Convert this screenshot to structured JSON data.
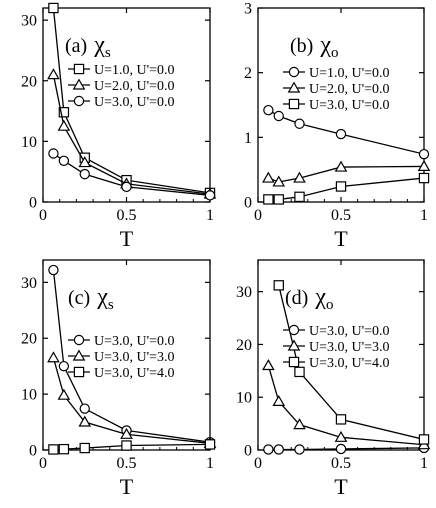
{
  "chart_data": [
    {
      "type": "line",
      "panel_label": "(a)",
      "title_symbol": "χ",
      "title_subscript": "s",
      "xlabel": "T",
      "ylabel": "",
      "xlim": [
        0,
        1
      ],
      "ylim": [
        0,
        32
      ],
      "xticks": [
        0,
        0.5,
        1
      ],
      "xtick_labels": [
        "0",
        "0.5",
        "1"
      ],
      "yticks": [
        0,
        10,
        20,
        30
      ],
      "ytick_labels": [
        "0",
        "10",
        "20",
        "30"
      ],
      "legend_position": "top-right",
      "series": [
        {
          "name": "U=1.0, U'=0.0",
          "marker": "square",
          "x": [
            0.0625,
            0.125,
            0.25,
            0.5,
            1.0
          ],
          "y": [
            32.0,
            14.8,
            7.3,
            3.6,
            1.5
          ]
        },
        {
          "name": "U=2.0, U'=0.0",
          "marker": "triangle",
          "x": [
            0.0625,
            0.125,
            0.25,
            0.5,
            1.0
          ],
          "y": [
            21.0,
            12.5,
            6.5,
            3.0,
            1.3
          ]
        },
        {
          "name": "U=3.0, U'=0.0",
          "marker": "circle",
          "x": [
            0.0625,
            0.125,
            0.25,
            0.5,
            1.0
          ],
          "y": [
            8.0,
            6.8,
            4.6,
            2.5,
            1.1
          ]
        }
      ]
    },
    {
      "type": "line",
      "panel_label": "(b)",
      "title_symbol": "χ",
      "title_subscript": "o",
      "xlabel": "T",
      "ylabel": "",
      "xlim": [
        0,
        1
      ],
      "ylim": [
        0,
        3
      ],
      "xticks": [
        0,
        0.5,
        1
      ],
      "xtick_labels": [
        "0",
        "0.5",
        "1"
      ],
      "yticks": [
        0,
        1,
        2,
        3
      ],
      "ytick_labels": [
        "0",
        "1",
        "2",
        "3"
      ],
      "legend_position": "top-right",
      "series": [
        {
          "name": "U=1.0, U'=0.0",
          "marker": "circle",
          "x": [
            0.0625,
            0.125,
            0.25,
            0.5,
            1.0
          ],
          "y": [
            1.42,
            1.33,
            1.21,
            1.05,
            0.74
          ]
        },
        {
          "name": "U=2.0, U'=0.0",
          "marker": "triangle",
          "x": [
            0.0625,
            0.125,
            0.25,
            0.5,
            1.0
          ],
          "y": [
            0.37,
            0.31,
            0.37,
            0.54,
            0.55
          ]
        },
        {
          "name": "U=3.0, U'=0.0",
          "marker": "square",
          "x": [
            0.0625,
            0.125,
            0.25,
            0.5,
            1.0
          ],
          "y": [
            0.04,
            0.04,
            0.08,
            0.24,
            0.37
          ]
        }
      ]
    },
    {
      "type": "line",
      "panel_label": "(c)",
      "title_symbol": "χ",
      "title_subscript": "s",
      "xlabel": "T",
      "ylabel": "",
      "xlim": [
        0,
        1
      ],
      "ylim": [
        0,
        34
      ],
      "xticks": [
        0,
        0.5,
        1
      ],
      "xtick_labels": [
        "0",
        "0.5",
        "1"
      ],
      "yticks": [
        0,
        10,
        20,
        30
      ],
      "ytick_labels": [
        "0",
        "10",
        "20",
        "30"
      ],
      "legend_position": "center-right",
      "series": [
        {
          "name": "U=3.0, U'=0.0",
          "marker": "circle",
          "x": [
            0.0625,
            0.125,
            0.25,
            0.5,
            1.0
          ],
          "y": [
            32.2,
            15.0,
            7.4,
            3.5,
            1.4
          ]
        },
        {
          "name": "U=3.0, U'=3.0",
          "marker": "triangle",
          "x": [
            0.0625,
            0.125,
            0.25,
            0.5,
            1.0
          ],
          "y": [
            16.5,
            9.8,
            5.0,
            2.8,
            1.2
          ]
        },
        {
          "name": "U=3.0, U'=4.0",
          "marker": "square",
          "x": [
            0.0625,
            0.125,
            0.25,
            0.5,
            1.0
          ],
          "y": [
            0.1,
            0.15,
            0.35,
            0.8,
            1.0
          ]
        }
      ]
    },
    {
      "type": "line",
      "panel_label": "(d)",
      "title_symbol": "χ",
      "title_subscript": "o",
      "xlabel": "T",
      "ylabel": "",
      "xlim": [
        0,
        1
      ],
      "ylim": [
        0,
        36
      ],
      "xticks": [
        0,
        0.5,
        1
      ],
      "xtick_labels": [
        "0",
        "0.5",
        "1"
      ],
      "yticks": [
        0,
        10,
        20,
        30
      ],
      "ytick_labels": [
        "0",
        "10",
        "20",
        "30"
      ],
      "legend_position": "center-right",
      "series": [
        {
          "name": "U=3.0, U'=0.0",
          "marker": "circle",
          "x": [
            0.0625,
            0.125,
            0.25,
            0.5,
            1.0
          ],
          "y": [
            0.1,
            0.1,
            0.1,
            0.2,
            0.4
          ]
        },
        {
          "name": "U=3.0, U'=3.0",
          "marker": "triangle",
          "x": [
            0.0625,
            0.125,
            0.25,
            0.5,
            1.0
          ],
          "y": [
            16.0,
            9.2,
            4.8,
            2.4,
            1.0
          ]
        },
        {
          "name": "U=3.0, U'=4.0",
          "marker": "square",
          "x": [
            0.125,
            0.25,
            0.5,
            1.0
          ],
          "y": [
            31.2,
            14.8,
            5.8,
            2.0
          ]
        }
      ]
    }
  ]
}
